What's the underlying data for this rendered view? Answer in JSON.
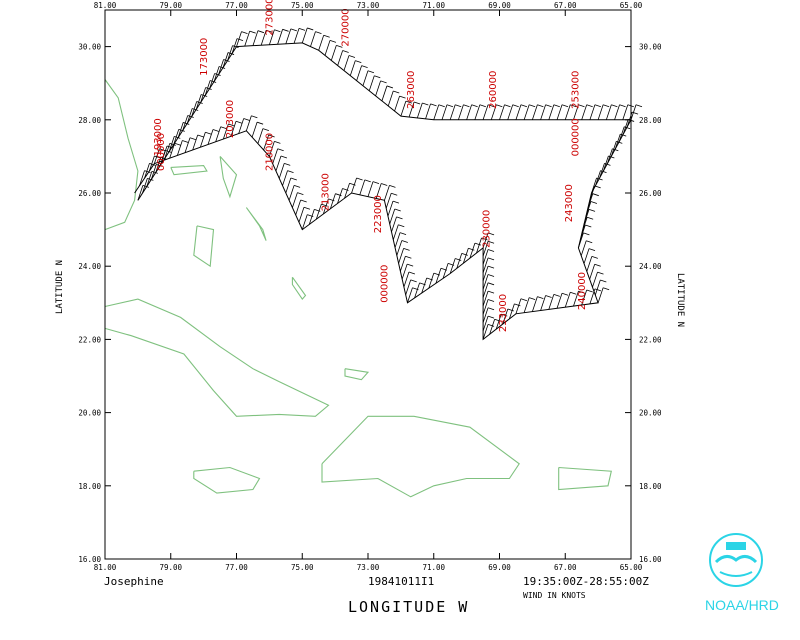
{
  "storm_name": "Josephine",
  "flight_id": "19841011I1",
  "time_range": "19:35:00Z-28:55:00Z",
  "wind_units": "WIND IN KNOTS",
  "logo_text": "NOAA/HRD",
  "logo_icon": "noaa-seagull-logo",
  "colors": {
    "coast": "#7fc17f",
    "track": "#000000",
    "altitude_label": "#cc0000",
    "logo": "#2bd4e6"
  },
  "chart_data": {
    "type": "scatter",
    "xlabel": "LONGITUDE   W",
    "ylabel": "LATITUDE   N",
    "xlim": [
      81,
      65
    ],
    "ylim": [
      16,
      31
    ],
    "x_ticks": [
      "81.00",
      "79.00",
      "77.00",
      "75.00",
      "73.00",
      "71.00",
      "69.00",
      "67.00",
      "65.00"
    ],
    "y_ticks": [
      "16.00",
      "18.00",
      "20.00",
      "22.00",
      "24.00",
      "26.00",
      "28.00",
      "30.00"
    ],
    "track": [
      [
        80.0,
        25.8
      ],
      [
        77.0,
        30.0
      ],
      [
        75.0,
        30.1
      ],
      [
        74.5,
        29.9
      ],
      [
        72.0,
        28.1
      ],
      [
        71.0,
        28.0
      ],
      [
        69.0,
        28.0
      ],
      [
        67.0,
        28.0
      ],
      [
        65.0,
        28.0
      ],
      [
        66.2,
        26.0
      ],
      [
        66.6,
        24.5
      ],
      [
        66.0,
        23.0
      ],
      [
        68.5,
        22.7
      ],
      [
        69.5,
        22.0
      ],
      [
        69.5,
        24.5
      ],
      [
        70.5,
        23.8
      ],
      [
        71.8,
        23.0
      ],
      [
        72.5,
        25.8
      ],
      [
        73.5,
        26.0
      ],
      [
        75.0,
        25.0
      ],
      [
        76.0,
        27.0
      ],
      [
        76.7,
        27.7
      ],
      [
        79.5,
        26.8
      ],
      [
        80.1,
        26.0
      ]
    ],
    "altitude_labels": [
      {
        "text": "273000",
        "lon": 75.9,
        "lat": 30.3
      },
      {
        "text": "270000",
        "lon": 73.6,
        "lat": 30.0
      },
      {
        "text": "263000",
        "lon": 71.6,
        "lat": 28.3
      },
      {
        "text": "260000",
        "lon": 69.1,
        "lat": 28.3
      },
      {
        "text": "253000",
        "lon": 66.6,
        "lat": 28.3
      },
      {
        "text": "000000",
        "lon": 66.6,
        "lat": 27.0
      },
      {
        "text": "243000",
        "lon": 66.8,
        "lat": 25.2
      },
      {
        "text": "240000",
        "lon": 66.4,
        "lat": 22.8
      },
      {
        "text": "233000",
        "lon": 68.8,
        "lat": 22.2
      },
      {
        "text": "230000",
        "lon": 69.3,
        "lat": 24.5
      },
      {
        "text": "000000",
        "lon": 72.4,
        "lat": 23.0
      },
      {
        "text": "223000",
        "lon": 72.6,
        "lat": 24.9
      },
      {
        "text": "213000",
        "lon": 74.2,
        "lat": 25.5
      },
      {
        "text": "210000",
        "lon": 75.9,
        "lat": 26.6
      },
      {
        "text": "203000",
        "lon": 77.1,
        "lat": 27.5
      },
      {
        "text": "173000",
        "lon": 77.9,
        "lat": 29.2
      },
      {
        "text": "193000",
        "lon": 79.3,
        "lat": 27.0
      },
      {
        "text": "000000",
        "lon": 79.2,
        "lat": 26.6
      }
    ],
    "wind_barbs": "every ~2 min along track, units knots"
  }
}
